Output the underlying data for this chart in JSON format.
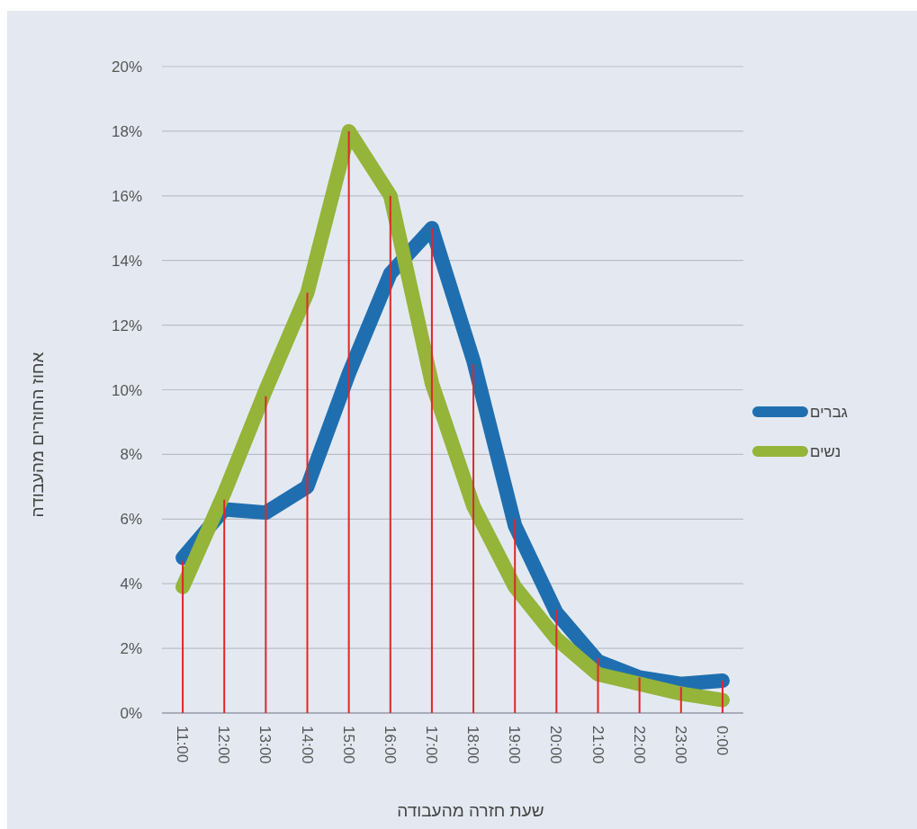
{
  "chart_data": {
    "type": "line",
    "xlabel": "שעת חזרה מהעבודה",
    "ylabel": "אחוז החוזרים מהעבודה",
    "categories": [
      "11:00",
      "12:00",
      "13:00",
      "14:00",
      "15:00",
      "16:00",
      "17:00",
      "18:00",
      "19:00",
      "20:00",
      "21:00",
      "22:00",
      "23:00",
      "0:00"
    ],
    "ylim": [
      0,
      20
    ],
    "yticks": [
      {
        "value": 0,
        "label": "0%"
      },
      {
        "value": 2,
        "label": "2%"
      },
      {
        "value": 4,
        "label": "4%"
      },
      {
        "value": 6,
        "label": "6%"
      },
      {
        "value": 8,
        "label": "8%"
      },
      {
        "value": 10,
        "label": "10%"
      },
      {
        "value": 12,
        "label": "12%"
      },
      {
        "value": 14,
        "label": "14%"
      },
      {
        "value": 16,
        "label": "16%"
      },
      {
        "value": 18,
        "label": "18%"
      },
      {
        "value": 20,
        "label": "20%"
      }
    ],
    "grid": "y",
    "legend": "right",
    "series": [
      {
        "name": "גברים",
        "color": "#1f6fb0",
        "values": [
          4.8,
          6.3,
          6.2,
          7.0,
          10.5,
          13.6,
          15.0,
          10.9,
          5.8,
          3.1,
          1.6,
          1.1,
          0.9,
          1.0
        ]
      },
      {
        "name": "נשים",
        "color": "#94b43a",
        "values": [
          3.9,
          6.8,
          10.0,
          13.0,
          18.0,
          16.0,
          10.2,
          6.4,
          3.9,
          2.3,
          1.2,
          0.9,
          0.6,
          0.4
        ]
      },
      {
        "type": "bar",
        "color": "#e0262a",
        "values": [
          4.7,
          6.6,
          9.8,
          13.0,
          18.0,
          16.0,
          15.0,
          10.8,
          6.0,
          3.2,
          1.7,
          1.1,
          0.8,
          1.0
        ]
      }
    ]
  }
}
